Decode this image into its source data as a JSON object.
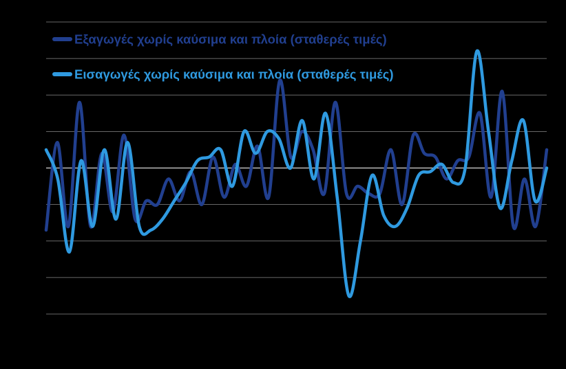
{
  "chart_data": {
    "type": "line",
    "title": "",
    "xlabel": "",
    "ylabel": "",
    "ylim": [
      -4,
      4
    ],
    "grid": true,
    "legend": "top-left",
    "series": [
      {
        "name": "Εξαγωγές χωρίς καύσιμα και πλοία (σταθερές τιμές)",
        "color": "#213f8f",
        "values": [
          -1.7,
          0.7,
          -1.6,
          1.8,
          -1.6,
          0.4,
          -1.2,
          0.9,
          -1.4,
          -0.9,
          -1.0,
          -0.3,
          -0.9,
          -0.1,
          -1.0,
          0.3,
          -0.8,
          0.1,
          -0.5,
          0.6,
          -0.8,
          2.4,
          0.3,
          1.0,
          0.5,
          -0.7,
          1.8,
          -0.7,
          -0.5,
          -0.7,
          -0.7,
          0.5,
          -1.0,
          0.9,
          0.4,
          0.3,
          -0.3,
          0.2,
          0.3,
          1.5,
          -0.8,
          2.1,
          -1.6,
          -0.3,
          -1.6,
          0.5
        ]
      },
      {
        "name": "Εισαγωγές χωρίς καύσιμα και πλοία (σταθερές τιμές)",
        "color": "#2f9ae0",
        "values": [
          0.5,
          -0.3,
          -2.3,
          0.2,
          -1.6,
          0.5,
          -1.4,
          0.7,
          -1.6,
          -1.7,
          -1.4,
          -0.9,
          -0.4,
          0.2,
          0.3,
          0.5,
          -0.5,
          1.0,
          0.4,
          1.0,
          0.8,
          0.0,
          1.3,
          -0.3,
          1.5,
          -0.8,
          -3.5,
          -2.0,
          -0.2,
          -1.3,
          -1.6,
          -1.1,
          -0.2,
          -0.1,
          0.1,
          -0.4,
          0.0,
          3.2,
          1.0,
          -1.1,
          0.2,
          1.3,
          -0.9,
          0.0
        ]
      }
    ]
  }
}
